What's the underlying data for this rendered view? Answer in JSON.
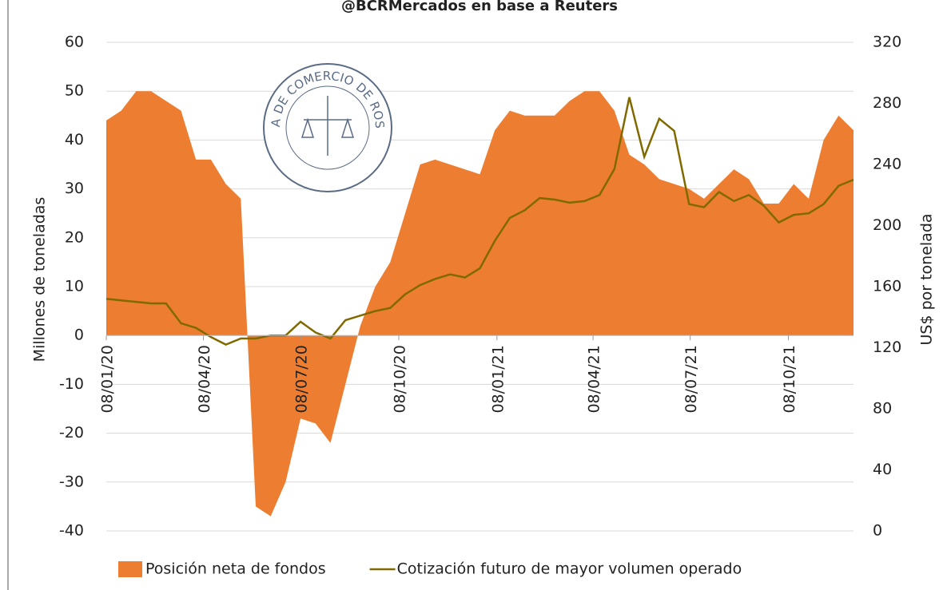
{
  "chart_data": {
    "type": "area_line",
    "subtitle": "@BCRMercados en base a Reuters",
    "logo_text": "BOLSA DE COMERCIO DE ROSARIO",
    "ylabel": "Millones de toneladas",
    "y2label": "US$ por tonelada",
    "x": [
      "08/01/20",
      "22/01/20",
      "05/02/20",
      "19/02/20",
      "04/03/20",
      "18/03/20",
      "01/04/20",
      "15/04/20",
      "29/04/20",
      "13/05/20",
      "27/05/20",
      "10/06/20",
      "24/06/20",
      "08/07/20",
      "22/07/20",
      "05/08/20",
      "19/08/20",
      "02/09/20",
      "16/09/20",
      "30/09/20",
      "14/10/20",
      "28/10/20",
      "11/11/20",
      "25/11/20",
      "09/12/20",
      "23/12/20",
      "06/01/21",
      "20/01/21",
      "03/02/21",
      "17/02/21",
      "03/03/21",
      "17/03/21",
      "31/03/21",
      "14/04/21",
      "28/04/21",
      "12/05/21",
      "26/05/21",
      "09/06/21",
      "23/06/21",
      "07/07/21",
      "21/07/21",
      "04/08/21",
      "18/08/21",
      "01/09/21",
      "15/09/21",
      "29/09/21",
      "13/10/21",
      "27/10/21",
      "10/11/21",
      "24/11/21",
      "08/12/21"
    ],
    "xlim": [
      "08/01/20",
      "08/12/21"
    ],
    "xticks": [
      "08/01/20",
      "08/04/20",
      "08/07/20",
      "08/10/20",
      "08/01/21",
      "08/04/21",
      "08/07/21",
      "08/10/21"
    ],
    "series": [
      {
        "name": "Posición neta de fondos",
        "color": "#ed7d31",
        "kind": "area",
        "values": [
          44,
          46,
          50,
          50,
          48,
          46,
          36,
          36,
          31,
          28,
          -35,
          -37,
          -30,
          -17,
          -18,
          -22,
          -10,
          2,
          10,
          15,
          25,
          35,
          36,
          35,
          34,
          33,
          42,
          46,
          45,
          45,
          45,
          48,
          50,
          50,
          46,
          37,
          35,
          32,
          31,
          30,
          28,
          31,
          34,
          32,
          27,
          27,
          31,
          28,
          40,
          45,
          42
        ]
      },
      {
        "name": "Cotización futuro de mayor volumen operado",
        "color": "#806a00",
        "kind": "line",
        "axis": "y2",
        "values": [
          152,
          151,
          150,
          149,
          149,
          136,
          133,
          127,
          122,
          126,
          126,
          128,
          128,
          137,
          130,
          126,
          138,
          141,
          144,
          146,
          155,
          161,
          165,
          168,
          166,
          172,
          190,
          205,
          210,
          218,
          217,
          215,
          216,
          220,
          237,
          284,
          245,
          270,
          262,
          214,
          212,
          222,
          216,
          220,
          213,
          202,
          207,
          208,
          214,
          226,
          230
        ]
      }
    ],
    "ylim": [
      -40,
      60
    ],
    "yticks": [
      -40,
      -30,
      -20,
      -10,
      0,
      10,
      20,
      30,
      40,
      50,
      60
    ],
    "y2lim": [
      0,
      320
    ],
    "y2ticks": [
      0,
      40,
      80,
      120,
      160,
      200,
      240,
      280,
      320
    ],
    "legend": "bottom"
  }
}
